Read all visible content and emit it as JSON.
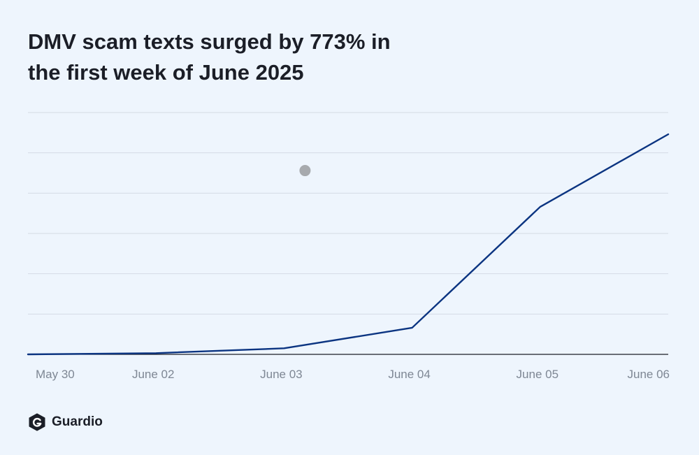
{
  "title": {
    "line1": "DMV scam texts surged by 773% in",
    "line2": "the first week of June 2025"
  },
  "brand": {
    "name": "Guardio",
    "icon": "guardio-shield-g-icon"
  },
  "colors": {
    "background": "#eef5fd",
    "line": "#0b3481",
    "grid": "#d4dbe4",
    "axis": "#1b1e27",
    "tick_text": "#7e8794",
    "marker": "#a7aaae"
  },
  "chart_data": {
    "type": "line",
    "title": "DMV scam texts surged by 773% in the first week of June 2025",
    "xlabel": "",
    "ylabel": "",
    "categories": [
      "May 30",
      "June 02",
      "June 03",
      "June 04",
      "June 05",
      "June 06"
    ],
    "series": [
      {
        "values": [
          0.0,
          0.5,
          2.5,
          11,
          61,
          91
        ]
      }
    ],
    "ylim": [
      0,
      100
    ],
    "grid": true,
    "y_tick_labels_shown": false,
    "legend": "none",
    "annotations": [
      {
        "type": "marker",
        "x": "June 03",
        "y": 76,
        "color": "#a7aaae"
      }
    ]
  }
}
